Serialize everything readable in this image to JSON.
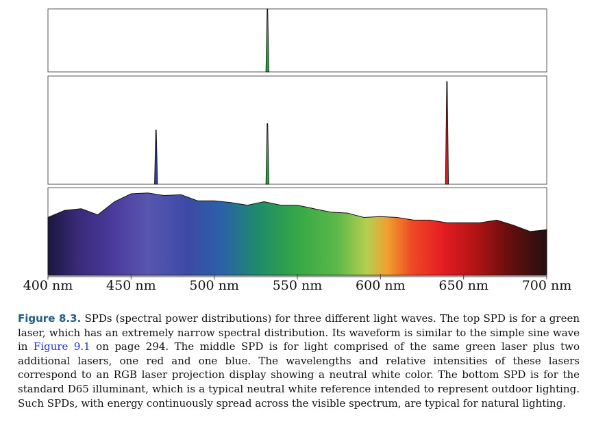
{
  "figure": {
    "x_ticks": [
      "400 nm",
      "450 nm",
      "500 nm",
      "550 nm",
      "600 nm",
      "650 nm",
      "700 nm"
    ],
    "chart_data": [
      {
        "type": "line",
        "panel": "top",
        "series": [
          {
            "peaks": [
              {
                "wavelength_nm": 532,
                "relative_intensity": 1.0,
                "color": "#2fa33a"
              }
            ]
          }
        ],
        "xlim": [
          400,
          700
        ],
        "ylim": [
          0,
          1.0
        ]
      },
      {
        "type": "line",
        "panel": "middle",
        "series": [
          {
            "peaks": [
              {
                "wavelength_nm": 465,
                "relative_intensity": 0.5,
                "color": "#2f3f9a"
              },
              {
                "wavelength_nm": 532,
                "relative_intensity": 0.56,
                "color": "#2fa33a"
              },
              {
                "wavelength_nm": 640,
                "relative_intensity": 0.95,
                "color": "#d42020"
              }
            ]
          }
        ],
        "xlim": [
          400,
          700
        ],
        "ylim": [
          0,
          1.0
        ]
      },
      {
        "type": "area",
        "panel": "bottom",
        "series": [
          {
            "x": [
              400,
              410,
              420,
              430,
              440,
              450,
              460,
              470,
              480,
              490,
              500,
              510,
              520,
              530,
              540,
              550,
              560,
              570,
              580,
              590,
              600,
              610,
              620,
              630,
              640,
              650,
              660,
              670,
              680,
              690,
              700
            ],
            "y": [
              0.66,
              0.74,
              0.76,
              0.69,
              0.84,
              0.93,
              0.94,
              0.91,
              0.92,
              0.85,
              0.85,
              0.83,
              0.8,
              0.84,
              0.8,
              0.8,
              0.76,
              0.72,
              0.71,
              0.66,
              0.67,
              0.66,
              0.63,
              0.63,
              0.6,
              0.6,
              0.6,
              0.63,
              0.57,
              0.5,
              0.52
            ]
          }
        ],
        "xlim": [
          400,
          700
        ],
        "ylim": [
          0,
          1.0
        ]
      }
    ]
  },
  "caption": {
    "label": "Figure 8.3.",
    "text_1": " SPDs (spectral power distributions) for three different light waves. The top SPD is for a green laser, which has an extremely narrow spectral distribution. Its waveform is similar to the simple sine wave in ",
    "xref": "Figure 9.1",
    "text_2": " on page 294. The middle SPD is for light comprised of the same green laser plus two additional lasers, one red and one blue. The wavelengths and relative intensities of these lasers correspond to an RGB laser projection display showing a neutral white color. The bottom SPD is for the standard D65 illuminant, which is a typical neutral white reference intended to represent outdoor lighting. Such SPDs, with energy continuously spread across the visible spectrum, are typical for natural lighting."
  }
}
